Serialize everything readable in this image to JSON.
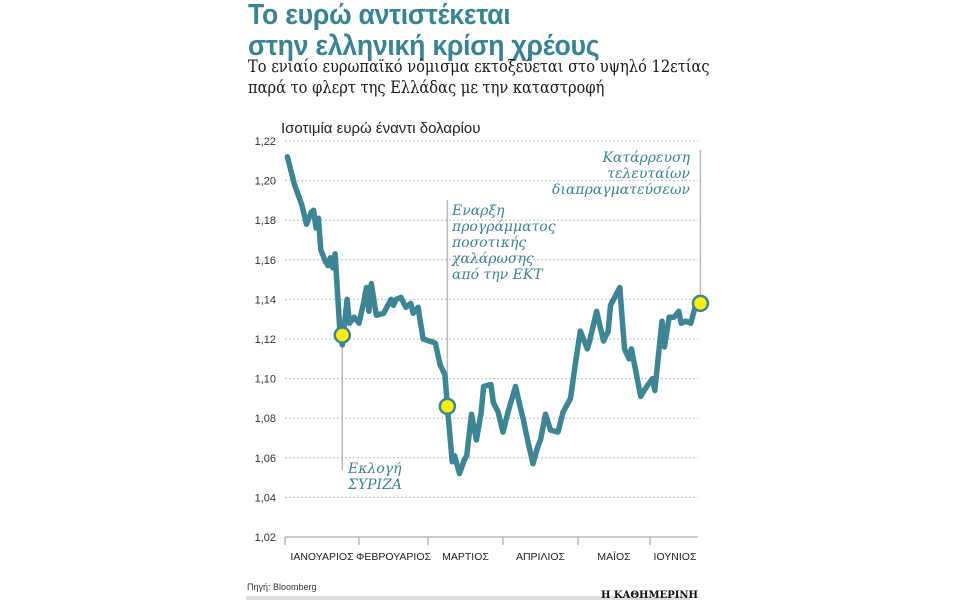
{
  "header": {
    "title_line1": "Το ευρώ αντιστέκεται",
    "title_line2": "στην ελληνική κρίση χρέους",
    "subtitle_line1": "Το ενιαίο ευρωπαϊκό νόμισμα εκτοξεύεται στο υψηλό 12ετίας",
    "subtitle_line2": "παρά το φλερτ της Ελλάδας με την καταστροφή"
  },
  "footer": {
    "source": "Πηγή: Bloomberg",
    "brand": "Η ΚΑΘΗΜΕΡΙΝΗ"
  },
  "chart_data": {
    "type": "line",
    "title": "Ισοτιμία ευρώ έναντι δολαρίου",
    "xlabel": "",
    "ylabel": "",
    "ylim": [
      1.02,
      1.22
    ],
    "yticks": [
      "1,22",
      "1,20",
      "1,18",
      "1,16",
      "1,14",
      "1,12",
      "1,10",
      "1,08",
      "1,06",
      "1,04",
      "1,02"
    ],
    "grid": true,
    "line_color": "#3d8595",
    "marker_color": "#ffee00",
    "months": [
      "ΙΑΝΟΥΑΡΙΟΣ",
      "ΦΕΒΡΟΥΑΡΙΟΣ",
      "ΜΑΡΤΙΟΣ",
      "ΑΠΡΙΛΙΟΣ",
      "ΜΑΪΟΣ",
      "ΙΟΥΝΙΟΣ"
    ],
    "x": [
      "01-02",
      "01-05",
      "01-08",
      "01-10",
      "01-12",
      "01-13",
      "01-14",
      "01-15",
      "01-16",
      "01-18",
      "01-19",
      "01-20",
      "01-21",
      "01-22",
      "01-24",
      "01-25",
      "01-27",
      "01-28",
      "01-30",
      "02-01",
      "02-03",
      "02-04",
      "02-05",
      "02-06",
      "02-08",
      "02-11",
      "02-14",
      "02-15",
      "02-16",
      "02-18",
      "02-20",
      "02-22",
      "02-23",
      "02-25",
      "02-27",
      "03-04",
      "03-06",
      "03-08",
      "03-09",
      "03-11",
      "03-12",
      "03-14",
      "03-16",
      "03-17",
      "03-19",
      "03-21",
      "03-23",
      "03-24",
      "03-27",
      "03-28",
      "03-30",
      "04-01",
      "04-03",
      "04-06",
      "04-08",
      "04-09",
      "04-11",
      "04-13",
      "04-15",
      "04-16",
      "04-18",
      "04-20",
      "04-23",
      "04-25",
      "04-28",
      "04-30",
      "05-02",
      "05-05",
      "05-06",
      "05-09",
      "05-12",
      "05-14",
      "05-15",
      "05-19",
      "05-21",
      "05-23",
      "05-24",
      "05-26",
      "05-28",
      "05-30",
      "06-02",
      "06-03",
      "06-06",
      "06-07",
      "06-09",
      "06-11",
      "06-13",
      "06-14",
      "06-16",
      "06-18",
      "06-20",
      "06-22"
    ],
    "values": [
      1.212,
      1.198,
      1.188,
      1.178,
      1.184,
      1.185,
      1.176,
      1.181,
      1.165,
      1.159,
      1.157,
      1.161,
      1.156,
      1.163,
      1.124,
      1.117,
      1.14,
      1.128,
      1.131,
      1.128,
      1.139,
      1.146,
      1.134,
      1.148,
      1.132,
      1.133,
      1.14,
      1.137,
      1.14,
      1.141,
      1.136,
      1.138,
      1.133,
      1.136,
      1.12,
      1.118,
      1.107,
      1.102,
      1.086,
      1.058,
      1.061,
      1.052,
      1.059,
      1.061,
      1.082,
      1.069,
      1.083,
      1.096,
      1.097,
      1.088,
      1.083,
      1.073,
      1.083,
      1.096,
      1.085,
      1.08,
      1.068,
      1.057,
      1.066,
      1.069,
      1.082,
      1.074,
      1.073,
      1.083,
      1.09,
      1.108,
      1.124,
      1.115,
      1.119,
      1.134,
      1.119,
      1.124,
      1.137,
      1.146,
      1.115,
      1.11,
      1.115,
      1.103,
      1.091,
      1.095,
      1.1,
      1.094,
      1.129,
      1.116,
      1.131,
      1.131,
      1.134,
      1.128,
      1.129,
      1.128,
      1.137,
      1.138
    ],
    "annotations": [
      {
        "x": "01-25",
        "y": 1.122,
        "lines": [
          "Εκλογή",
          "ΣΥΡΙΖΑ"
        ]
      },
      {
        "x": "03-09",
        "y": 1.086,
        "lines": [
          "Εναρξη",
          "προγράμματος",
          "ποσοτικής",
          "χαλάρωσης",
          "από την ΕΚΤ"
        ]
      },
      {
        "x": "06-22",
        "y": 1.138,
        "lines": [
          "Κατάρρευση",
          "τελευταίων",
          "διαπραγματεύσεων"
        ]
      }
    ]
  }
}
